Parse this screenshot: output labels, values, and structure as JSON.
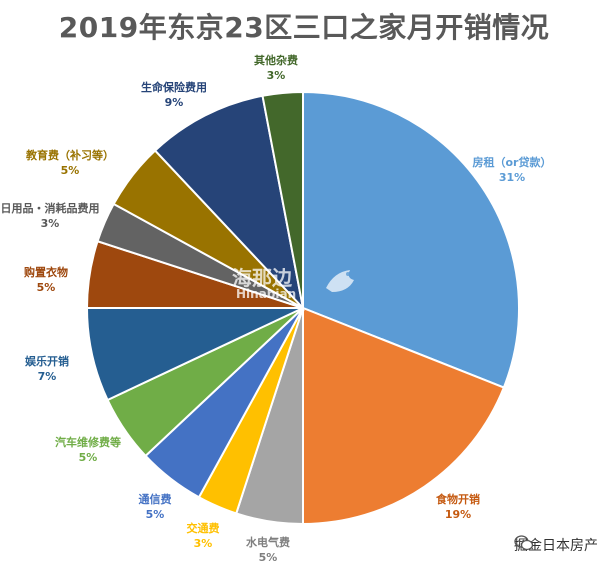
{
  "chart_data": {
    "type": "pie",
    "title": "2019年东京23区三口之家月开销情况",
    "slices": [
      {
        "label": "房租（or贷款）",
        "value": 31,
        "pct": "31%",
        "color": "#5b9bd5",
        "label_color": "#5b9bd5"
      },
      {
        "label": "食物开销",
        "value": 19,
        "pct": "19%",
        "color": "#ed7d31",
        "label_color": "#c55a11"
      },
      {
        "label": "水电气费",
        "value": 5,
        "pct": "5%",
        "color": "#a5a5a5",
        "label_color": "#7f7f7f"
      },
      {
        "label": "交通费",
        "value": 3,
        "pct": "3%",
        "color": "#ffc000",
        "label_color": "#ffc000"
      },
      {
        "label": "通信费",
        "value": 5,
        "pct": "5%",
        "color": "#4472c4",
        "label_color": "#4472c4"
      },
      {
        "label": "汽车维修费等",
        "value": 5,
        "pct": "5%",
        "color": "#70ad47",
        "label_color": "#70ad47"
      },
      {
        "label": "娱乐开销",
        "value": 7,
        "pct": "7%",
        "color": "#255e91",
        "label_color": "#255e91"
      },
      {
        "label": "购置衣物",
        "value": 5,
        "pct": "5%",
        "color": "#9e480e",
        "label_color": "#9e480e"
      },
      {
        "label": "日用品・消耗品费用",
        "value": 3,
        "pct": "3%",
        "color": "#636363",
        "label_color": "#595959"
      },
      {
        "label": "教育费（补习等）",
        "value": 5,
        "pct": "5%",
        "color": "#997300",
        "label_color": "#997300"
      },
      {
        "label": "生命保险费用",
        "value": 9,
        "pct": "9%",
        "color": "#264478",
        "label_color": "#264478"
      },
      {
        "label": "其他杂费",
        "value": 3,
        "pct": "3%",
        "color": "#43682b",
        "label_color": "#43682b"
      }
    ]
  },
  "watermark": {
    "cn": "海那边",
    "en": "Hinabian"
  },
  "footer": {
    "text": "掘金日本房产",
    "icon": "wechat-icon"
  }
}
